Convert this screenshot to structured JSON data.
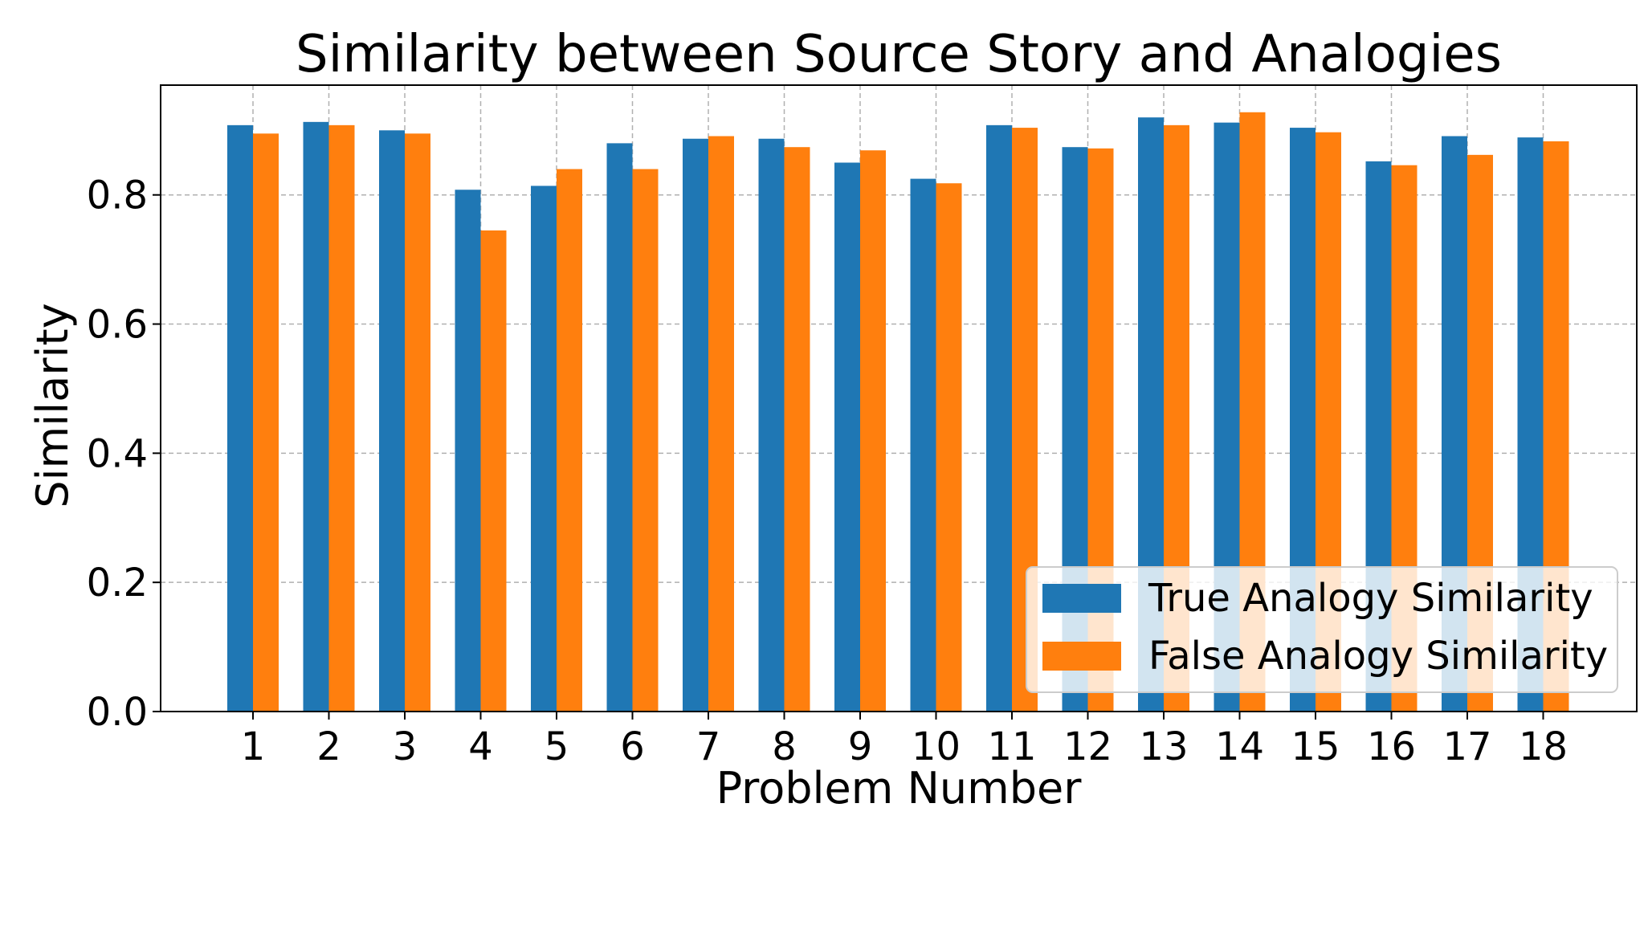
{
  "chart_data": {
    "type": "bar",
    "title": "Similarity between Source Story and Analogies",
    "xlabel": "Problem Number",
    "ylabel": "Similarity",
    "categories": [
      "1",
      "2",
      "3",
      "4",
      "5",
      "6",
      "7",
      "8",
      "9",
      "10",
      "11",
      "12",
      "13",
      "14",
      "15",
      "16",
      "17",
      "18"
    ],
    "series": [
      {
        "name": "True Analogy Similarity",
        "color": "#1f77b4",
        "values": [
          0.908,
          0.913,
          0.9,
          0.808,
          0.814,
          0.88,
          0.887,
          0.887,
          0.85,
          0.825,
          0.908,
          0.874,
          0.92,
          0.912,
          0.904,
          0.852,
          0.891,
          0.889
        ]
      },
      {
        "name": "False Analogy Similarity",
        "color": "#ff7f0e",
        "values": [
          0.895,
          0.908,
          0.895,
          0.745,
          0.84,
          0.84,
          0.891,
          0.874,
          0.869,
          0.818,
          0.904,
          0.872,
          0.908,
          0.928,
          0.897,
          0.846,
          0.862,
          0.883
        ]
      }
    ],
    "yticks": [
      "0.0",
      "0.2",
      "0.4",
      "0.6",
      "0.8"
    ],
    "ylim": [
      0,
      0.97
    ],
    "grid": true,
    "legend_position": "lower-right"
  }
}
